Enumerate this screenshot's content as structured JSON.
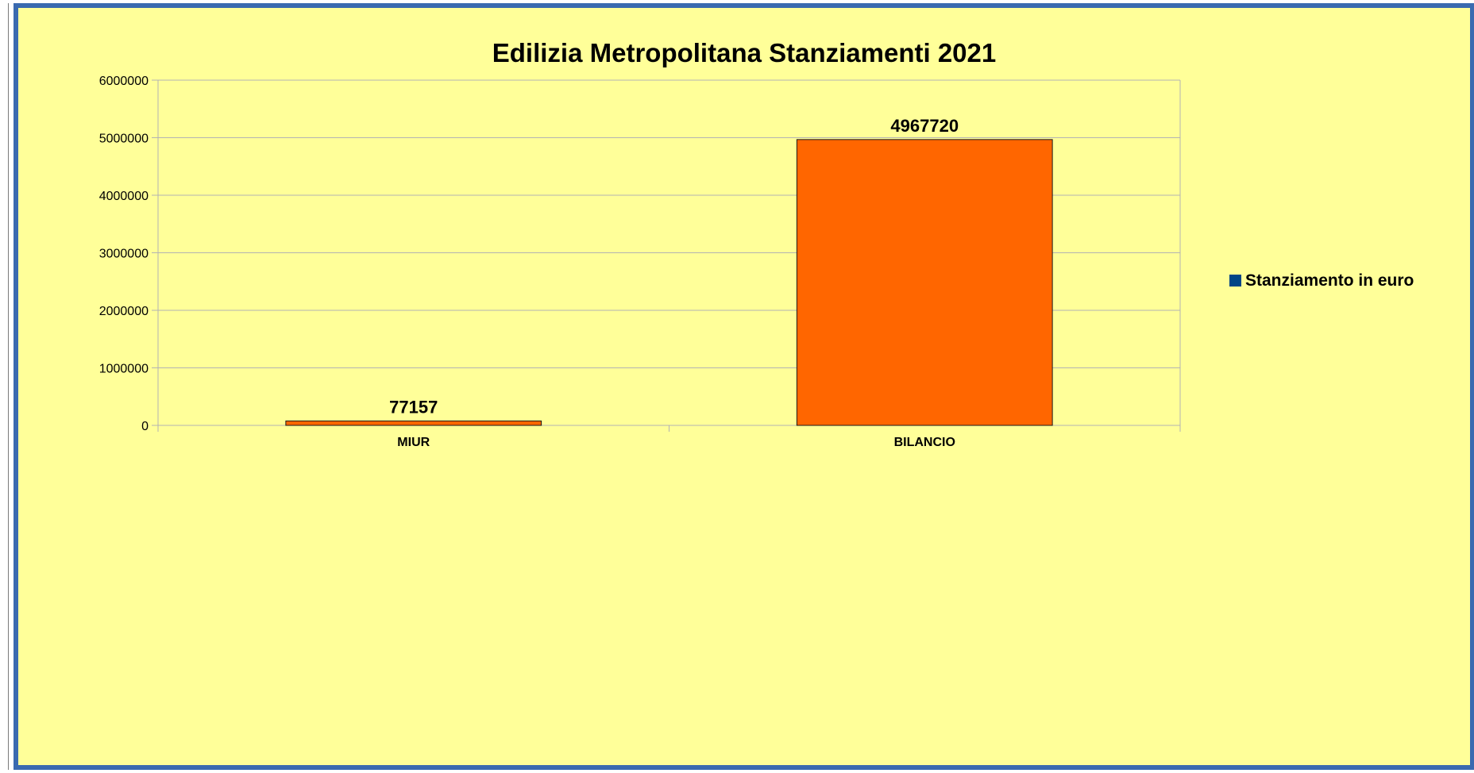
{
  "chart_data": {
    "type": "bar",
    "title": "Edilizia Metropolitana Stanziamenti 2021",
    "categories": [
      "MIUR",
      "BILANCIO"
    ],
    "series": [
      {
        "name": "Stanziamento in euro",
        "values": [
          77157,
          4967720
        ]
      }
    ],
    "data_labels": [
      "77157",
      "4967720"
    ],
    "y_ticks": [
      "0",
      "1000000",
      "2000000",
      "3000000",
      "4000000",
      "5000000",
      "6000000"
    ],
    "ylim": [
      0,
      6000000
    ],
    "grid": true,
    "legend_position": "right",
    "colors": {
      "bar": "#ff6600",
      "legend_marker": "#004586",
      "background": "#ffff99",
      "border": "#3a6ab0",
      "gridline": "#b3b3b3"
    }
  }
}
